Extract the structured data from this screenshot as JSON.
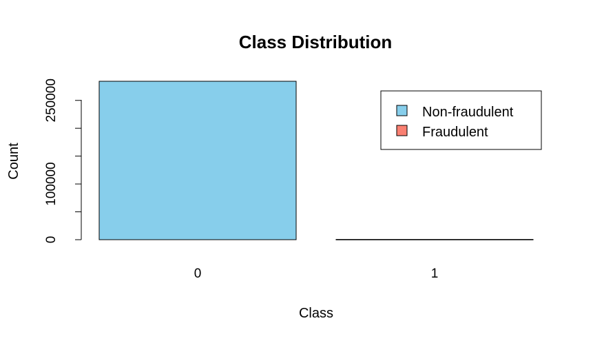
{
  "chart_data": {
    "type": "bar",
    "title": "Class Distribution",
    "xlabel": "Class",
    "ylabel": "Count",
    "categories": [
      "0",
      "1"
    ],
    "values": [
      284315,
      492
    ],
    "ylim": [
      0,
      284315
    ],
    "yticks": [
      "0",
      "100000",
      "250000"
    ],
    "legend": {
      "position": "top-right",
      "entries": [
        {
          "label": "Non-fraudulent",
          "color": "#87CEEB"
        },
        {
          "label": "Fraudulent",
          "color": "#FA8072"
        }
      ]
    },
    "bar_colors": [
      "#87CEEB",
      "#FA8072"
    ],
    "grid": false
  }
}
